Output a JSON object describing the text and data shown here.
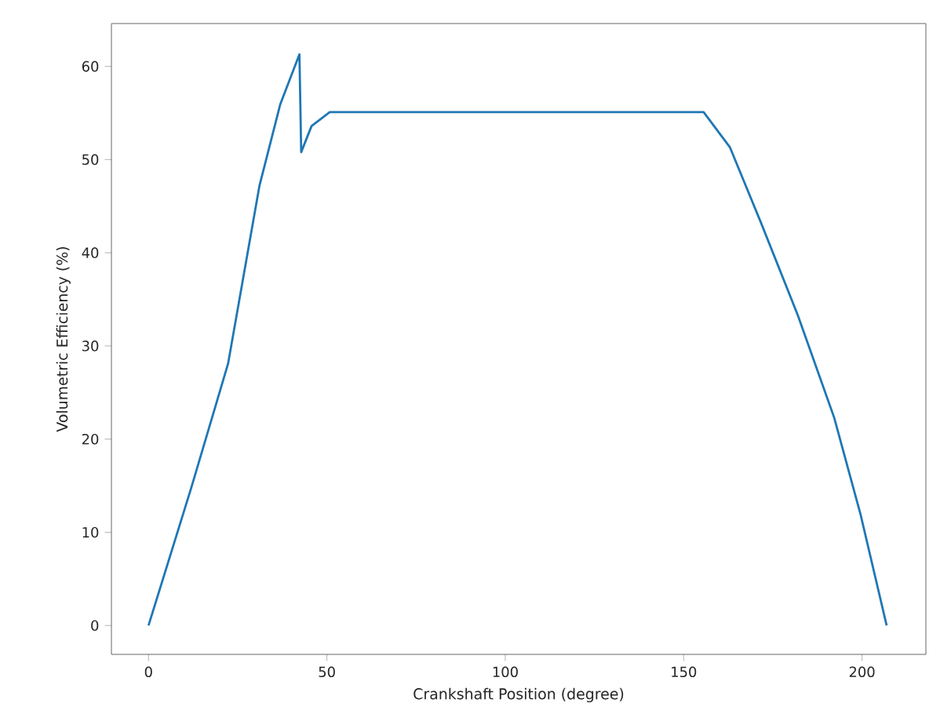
{
  "chart_data": {
    "type": "line",
    "xlabel": "Crankshaft Position (degree)",
    "ylabel": "Volumetric Efficiency (%)",
    "x": [
      0,
      12.0,
      22.3,
      31.1,
      36.9,
      42.3,
      42.8,
      45.7,
      50.8,
      155.6,
      163.0,
      171.7,
      182.0,
      192.2,
      199.6,
      206.9
    ],
    "series": [
      {
        "color": "#1f77b4",
        "values": [
          0,
          14.8,
          28.1,
          47.2,
          55.9,
          61.3,
          50.8,
          53.6,
          55.1,
          55.1,
          51.3,
          43.2,
          33.3,
          22.3,
          11.9,
          0
        ]
      }
    ],
    "xlim": [
      -10.4,
      217.9
    ],
    "ylim": [
      -3.1,
      64.6
    ],
    "xticks": [
      0,
      50,
      100,
      150,
      200
    ],
    "yticks": [
      0,
      10,
      20,
      30,
      40,
      50,
      60
    ],
    "grid": false,
    "marker": "none",
    "line_style": "solid"
  }
}
